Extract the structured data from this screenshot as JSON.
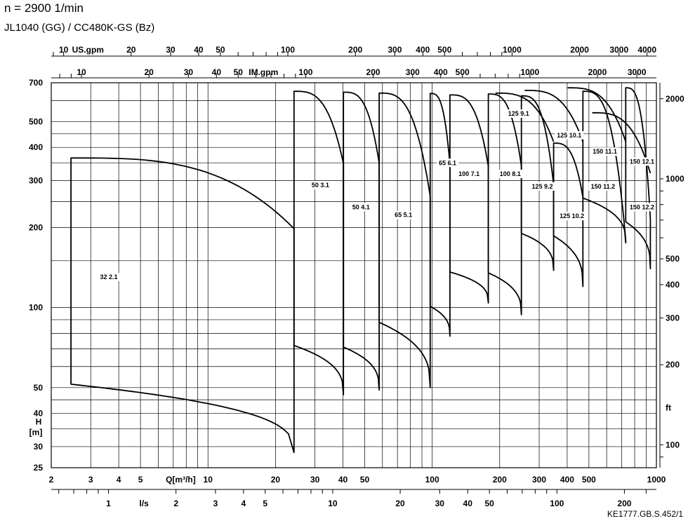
{
  "header": {
    "speed": "n = 2900 1/min",
    "model": "JL1040 (GG) /  CC480K-GS (Bz)",
    "doc_id": "KE1777.GB.S.452/1"
  },
  "chart_data": {
    "type": "line",
    "title": "n = 2900 1/min",
    "subtitle": "JL1040 (GG) /  CC480K-GS (Bz)",
    "scale": "log-log",
    "xlabel": "Q[m³/h]",
    "ylabel": "H [m]",
    "xlim": [
      2,
      1000
    ],
    "ylim": [
      25,
      700
    ],
    "grid": true,
    "axes": {
      "x_bottom": {
        "label": "Q[m³/h]",
        "ticks": [
          2,
          3,
          4,
          5,
          10,
          20,
          30,
          40,
          50,
          100,
          200,
          300,
          400,
          500,
          1000
        ]
      },
      "x_minor_gridlines": [
        6,
        7,
        8,
        9,
        60,
        70,
        80,
        90,
        600,
        700,
        800,
        900
      ],
      "y_left": {
        "label_lines": [
          "H",
          "[m]"
        ],
        "ticks": [
          25,
          30,
          40,
          50,
          100,
          200,
          300,
          400,
          500,
          700
        ]
      },
      "y_left_minor_gridlines": [
        35,
        45,
        60,
        70,
        80,
        90,
        150,
        250,
        350,
        450,
        600
      ],
      "x_ls": {
        "label": "l/s",
        "ticks": [
          1,
          2,
          3,
          4,
          5,
          10,
          20,
          30,
          40,
          50,
          100,
          200
        ]
      },
      "x_usgpm": {
        "label": "US.gpm",
        "ticks": [
          10,
          20,
          30,
          40,
          50,
          100,
          200,
          300,
          400,
          500,
          1000,
          2000,
          3000,
          4000
        ]
      },
      "x_imgpm": {
        "label": "IM.gpm",
        "ticks": [
          10,
          20,
          30,
          40,
          50,
          100,
          200,
          300,
          400,
          500,
          1000,
          2000,
          3000
        ]
      },
      "y_ft": {
        "label": "ft",
        "ticks": [
          100,
          200,
          300,
          400,
          500,
          1000,
          2000
        ]
      }
    },
    "series": [
      {
        "name": "32  2.1",
        "q_min": 2.45,
        "q_max": 24.2,
        "h_top": 365,
        "h_top_end": 198,
        "h_bot": 51.5,
        "h_bot_end": 28.5,
        "label_q": 3.3,
        "label_h": 131
      },
      {
        "name": "50  3.1",
        "q_min": 24.2,
        "q_max": 40.2,
        "h_top": 650,
        "h_top_end": 347,
        "h_bot": 72,
        "h_bot_end": 47,
        "label_q": 29,
        "label_h": 290
      },
      {
        "name": "50  4.1",
        "q_min": 40.2,
        "q_max": 58,
        "h_top": 645,
        "h_top_end": 350,
        "h_bot": 71,
        "h_bot_end": 49,
        "label_q": 44,
        "label_h": 240
      },
      {
        "name": "65  5.1",
        "q_min": 58,
        "q_max": 98,
        "h_top": 640,
        "h_top_end": 262,
        "h_bot": 88,
        "h_bot_end": 50,
        "label_q": 68,
        "label_h": 224
      },
      {
        "name": "65  6.1",
        "q_min": 98,
        "q_max": 120,
        "h_top": 638,
        "h_top_end": 345,
        "h_bot": 101,
        "h_bot_end": 78,
        "label_q": 107,
        "label_h": 352
      },
      {
        "name": "100  7.1",
        "q_min": 120,
        "q_max": 178,
        "h_top": 630,
        "h_top_end": 340,
        "h_bot": 136,
        "h_bot_end": 104,
        "label_q": 131,
        "label_h": 320
      },
      {
        "name": "100  8.1",
        "q_min": 178,
        "q_max": 250,
        "h_top": 635,
        "h_top_end": 340,
        "h_bot": 135,
        "h_bot_end": 94,
        "label_q": 200,
        "label_h": 320
      },
      {
        "name": "125  9.2",
        "q_min": 250,
        "q_max": 348,
        "h_top": 625,
        "h_top_end": 290,
        "h_bot": 190,
        "h_bot_end": 138,
        "label_q": 278,
        "label_h": 287
      },
      {
        "name": "125  9.1",
        "q_min": 348,
        "q_max": 348,
        "h_top": 640,
        "h_top_end": 420,
        "h_bot": 0,
        "h_bot_end": 0,
        "label_q": 218,
        "label_h": 539
      },
      {
        "name": "125  10.2",
        "q_min": 348,
        "q_max": 470,
        "h_top": 415,
        "h_top_end": 260,
        "h_bot": 186,
        "h_bot_end": 120,
        "label_q": 370,
        "label_h": 222
      },
      {
        "name": "125  10.1",
        "q_min": 470,
        "q_max": 470,
        "h_top": 655,
        "h_top_end": 420,
        "h_bot": 0,
        "h_bot_end": 0,
        "label_q": 360,
        "label_h": 447
      },
      {
        "name": "150  11.2",
        "q_min": 470,
        "q_max": 730,
        "h_top": 650,
        "h_top_end": 180,
        "h_bot": 258,
        "h_bot_end": 175,
        "label_q": 510,
        "label_h": 287
      },
      {
        "name": "150  11.1",
        "q_min": 730,
        "q_max": 730,
        "h_top": 670,
        "h_top_end": 420,
        "h_bot": 0,
        "h_bot_end": 0,
        "label_q": 520,
        "label_h": 388
      },
      {
        "name": "150  12.2",
        "q_min": 730,
        "q_max": 940,
        "h_top": 670,
        "h_top_end": 215,
        "h_bot": 210,
        "h_bot_end": 140,
        "label_q": 760,
        "label_h": 240
      },
      {
        "name": "150  12.1",
        "q_min": 940,
        "q_max": 940,
        "h_top": 540,
        "h_top_end": 320,
        "h_bot": 0,
        "h_bot_end": 0,
        "label_q": 760,
        "label_h": 356
      }
    ]
  }
}
